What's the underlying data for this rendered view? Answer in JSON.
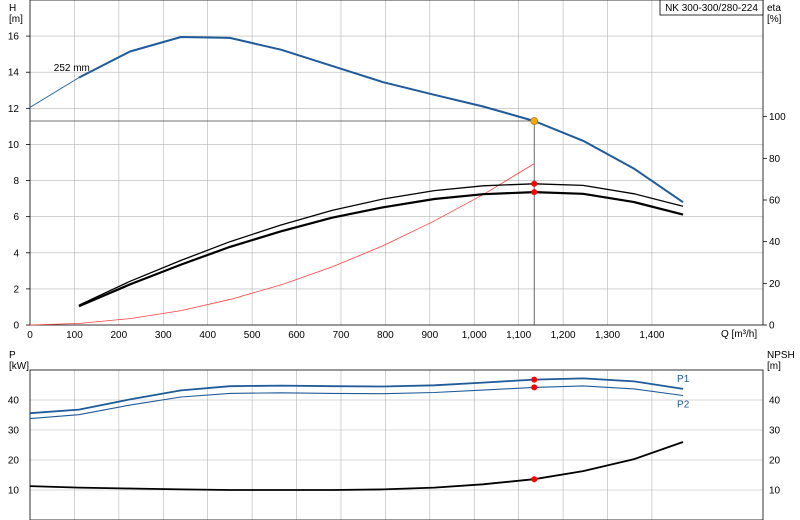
{
  "title_box": "NK 300-300/280-224",
  "colors": {
    "head": "#1f5a9a",
    "efficiency": "#000000",
    "system": "#ff4040",
    "duty_point": "#f6a800",
    "marker": "#ff0000",
    "grid": "#b4b4b4"
  },
  "chart_data": [
    {
      "type": "line",
      "xlabel": "Q [m³/h]",
      "xlim": [
        0,
        1650
      ],
      "x_ticks": [
        0,
        100,
        200,
        300,
        400,
        500,
        600,
        700,
        800,
        900,
        1000,
        1100,
        1200,
        1300,
        1400
      ],
      "x_tick_labels": [
        "0",
        "100",
        "200",
        "300",
        "400",
        "500",
        "600",
        "700",
        "800",
        "900",
        "1,000",
        "1,100",
        "1,200",
        "1,300",
        "1,400"
      ],
      "left_axis": {
        "label_line1": "H",
        "label_line2": "[m]",
        "lim": [
          0,
          18
        ],
        "ticks": [
          0,
          2,
          4,
          6,
          8,
          10,
          12,
          14,
          16
        ]
      },
      "right_axis": {
        "label_line1": "eta",
        "label_line2": "[%]",
        "lim": [
          0,
          156
        ],
        "ticks": [
          0,
          20,
          40,
          60,
          80,
          100
        ]
      },
      "annotations": [
        {
          "text": "252 mm",
          "x": 40,
          "y": 14.0
        }
      ],
      "duty_point": {
        "x": 1135,
        "y": 11.3
      },
      "series": [
        {
          "id": "head",
          "axis": "left",
          "x": [
            110,
            225,
            340,
            450,
            565,
            680,
            795,
            910,
            1020,
            1135,
            1245,
            1360,
            1470
          ],
          "y": [
            13.7,
            15.15,
            15.95,
            15.9,
            15.25,
            14.35,
            13.45,
            12.75,
            12.1,
            11.3,
            10.2,
            8.65,
            6.8
          ]
        },
        {
          "id": "head-extension",
          "axis": "left",
          "x": [
            0,
            110
          ],
          "y": [
            12.05,
            13.7
          ]
        },
        {
          "id": "system-curve",
          "axis": "left",
          "x": [
            0,
            113,
            227,
            340,
            453,
            567,
            680,
            794,
            907,
            1021,
            1135
          ],
          "y": [
            0.0,
            0.09,
            0.36,
            0.8,
            1.43,
            2.24,
            3.22,
            4.38,
            5.72,
            7.24,
            8.94
          ]
        },
        {
          "id": "eta-1",
          "axis": "right",
          "x": [
            110,
            225,
            340,
            450,
            565,
            680,
            795,
            910,
            1020,
            1135,
            1245,
            1360,
            1470
          ],
          "y": [
            9.5,
            21,
            31,
            40,
            48,
            55,
            60.5,
            64.5,
            66.8,
            67.8,
            67,
            63,
            57
          ]
        },
        {
          "id": "eta-2",
          "axis": "right",
          "x": [
            110,
            225,
            340,
            450,
            565,
            680,
            795,
            910,
            1020,
            1135,
            1245,
            1360,
            1470
          ],
          "y": [
            9,
            19.5,
            29,
            37.5,
            45,
            51.5,
            56.5,
            60.5,
            62.8,
            63.8,
            63,
            59,
            53
          ]
        }
      ],
      "markers": [
        {
          "axis": "right",
          "x": 1135,
          "y": 67.8
        },
        {
          "axis": "right",
          "x": 1135,
          "y": 63.8
        }
      ]
    },
    {
      "type": "line",
      "xlim": [
        0,
        1650
      ],
      "left_axis": {
        "label_line1": "P",
        "label_line2": "[kW]",
        "lim": [
          0,
          50
        ],
        "ticks": [
          10,
          20,
          30,
          40
        ]
      },
      "right_axis": {
        "label_line1": "NPSH",
        "label_line2": "[m]",
        "lim": [
          0,
          50
        ],
        "ticks": [
          10,
          20,
          30,
          40
        ]
      },
      "series": [
        {
          "id": "p1",
          "name": "P1",
          "axis": "left",
          "x": [
            0,
            110,
            225,
            340,
            450,
            565,
            680,
            795,
            910,
            1020,
            1135,
            1245,
            1360,
            1470
          ],
          "y": [
            35.6,
            36.8,
            40.2,
            43.2,
            44.6,
            44.8,
            44.6,
            44.5,
            44.9,
            45.8,
            46.8,
            47.2,
            46.2,
            43.7
          ]
        },
        {
          "id": "p2",
          "name": "P2",
          "axis": "left",
          "x": [
            0,
            110,
            225,
            340,
            450,
            565,
            680,
            795,
            910,
            1020,
            1135,
            1245,
            1360,
            1470
          ],
          "y": [
            33.8,
            35.1,
            38.3,
            41.0,
            42.2,
            42.4,
            42.2,
            42.1,
            42.5,
            43.3,
            44.2,
            44.7,
            43.7,
            41.5
          ]
        },
        {
          "id": "npsh",
          "axis": "right",
          "x": [
            0,
            110,
            225,
            340,
            450,
            565,
            680,
            795,
            910,
            1020,
            1135,
            1245,
            1360,
            1470
          ],
          "y": [
            11.3,
            10.8,
            10.5,
            10.2,
            10.0,
            10.0,
            10.0,
            10.2,
            10.8,
            11.9,
            13.6,
            16.3,
            20.3,
            26.0
          ]
        }
      ],
      "markers": [
        {
          "axis": "left",
          "x": 1135,
          "y": 46.8
        },
        {
          "axis": "left",
          "x": 1135,
          "y": 44.2
        },
        {
          "axis": "right",
          "x": 1135,
          "y": 13.6
        }
      ]
    }
  ]
}
